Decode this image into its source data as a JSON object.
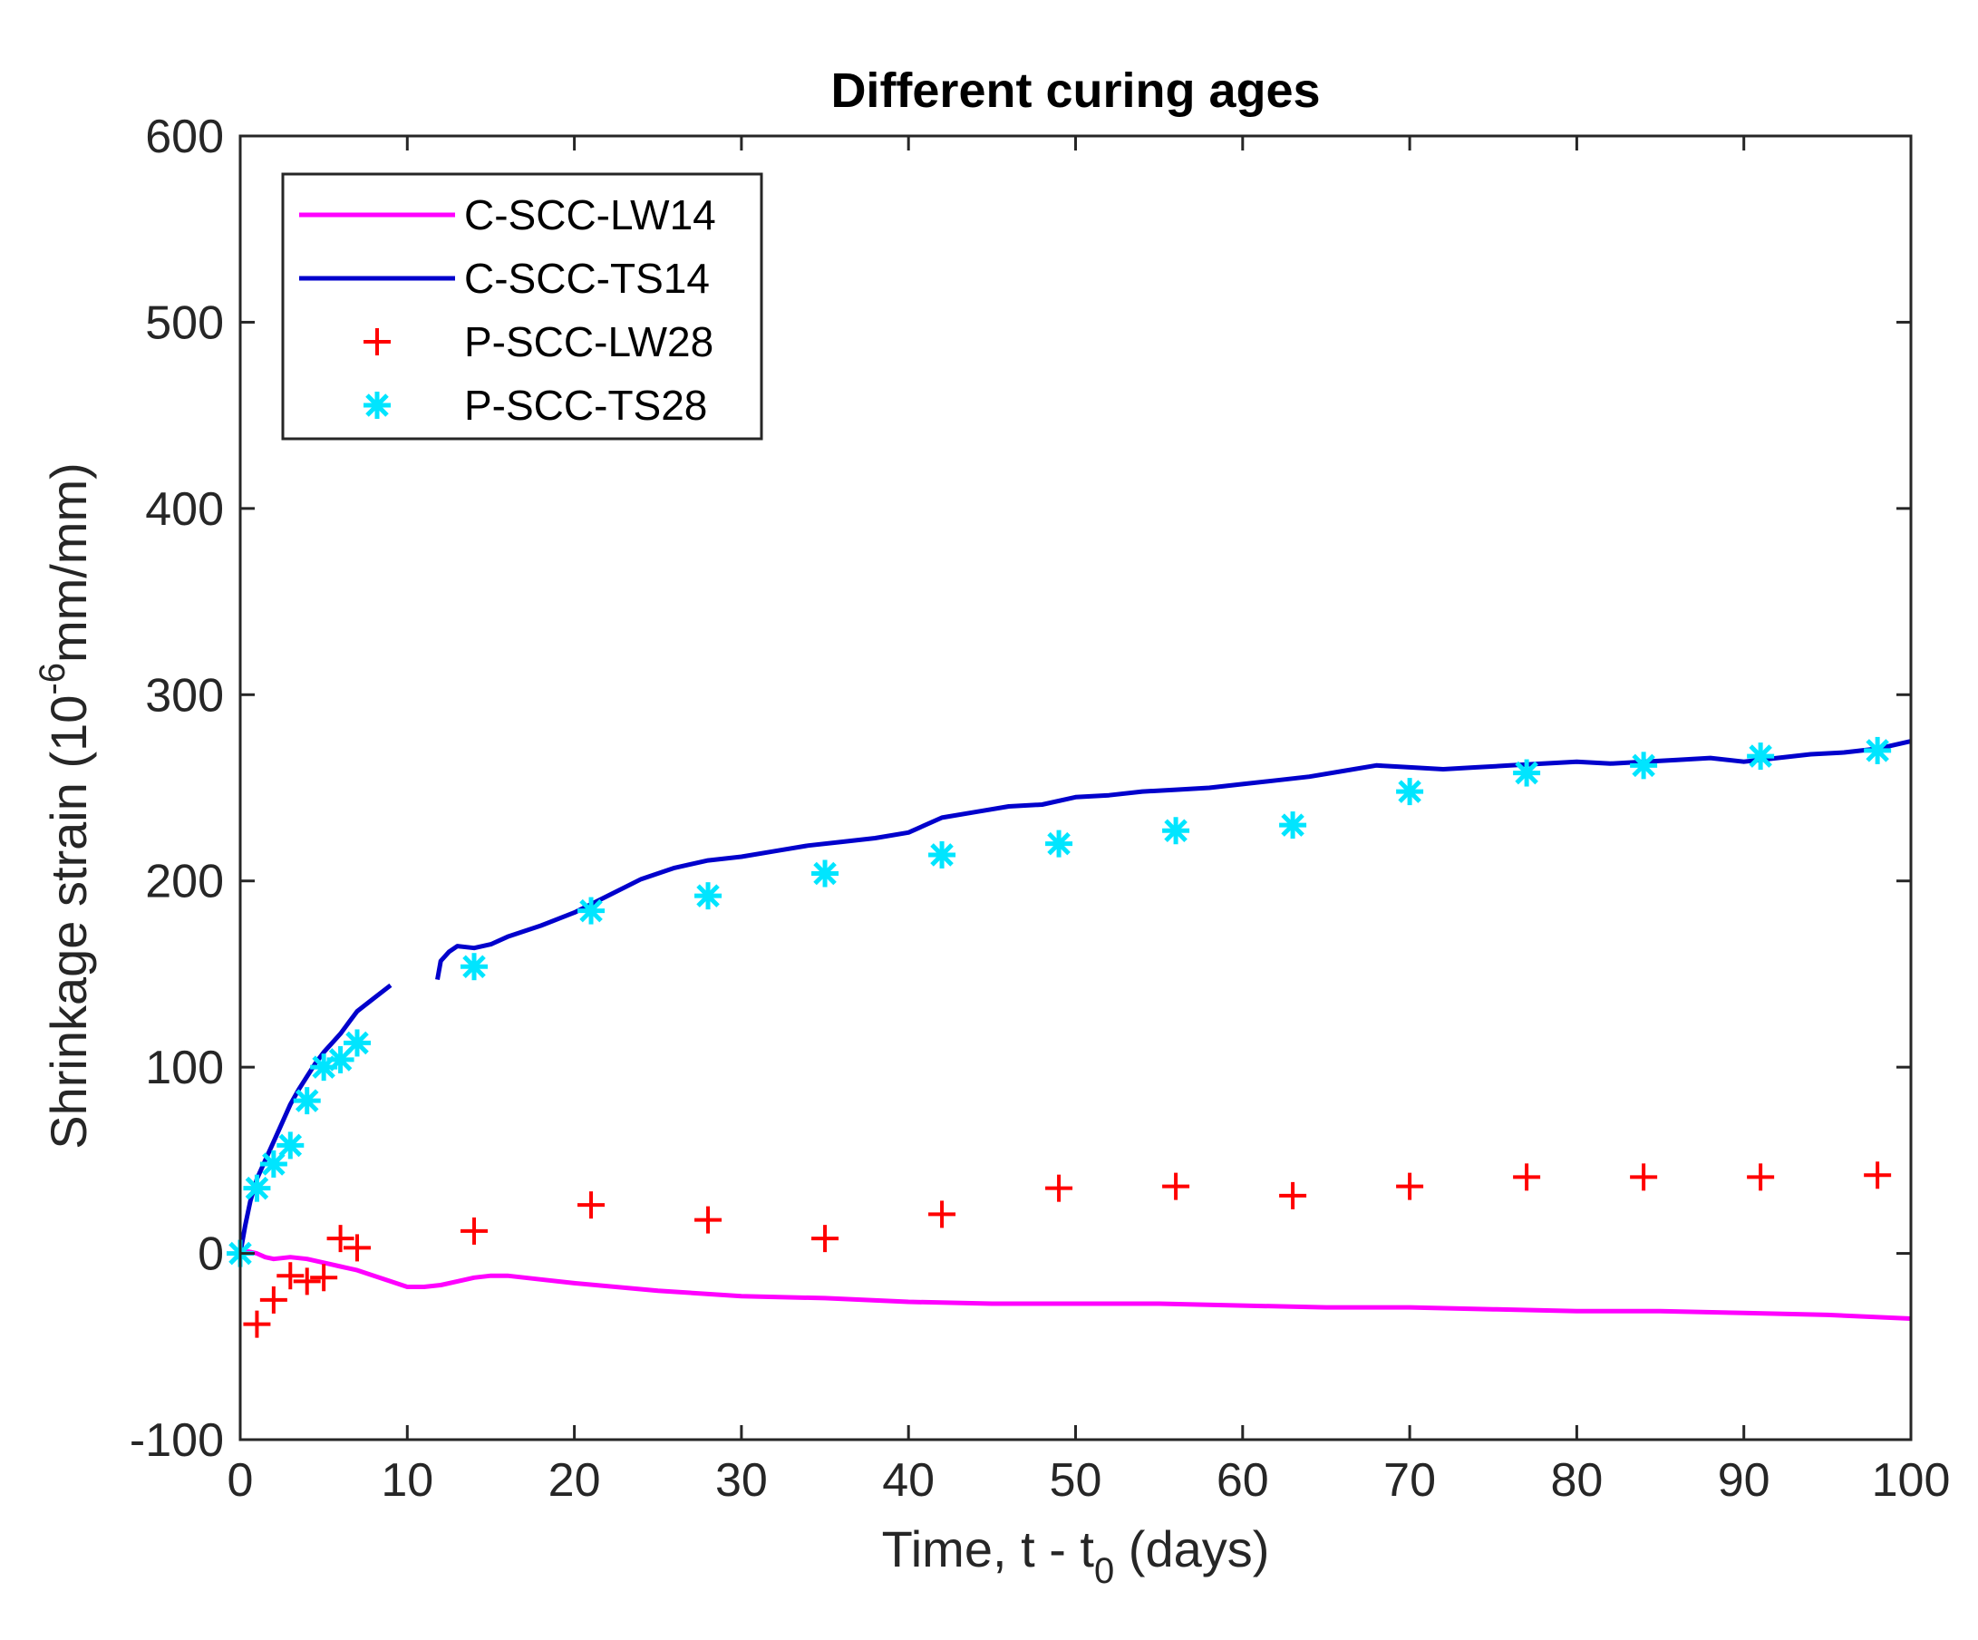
{
  "chart_data": {
    "type": "line",
    "title": "Different curing ages",
    "xlabel": {
      "prefix": "Time, t - t",
      "subscript": "0",
      "suffix": " (days)"
    },
    "ylabel": {
      "prefix": "Shrinkage strain (10",
      "superscript": "-6",
      "suffix": "mm/mm)"
    },
    "xlim": [
      0,
      100
    ],
    "ylim": [
      -100,
      600
    ],
    "xticks": [
      0,
      10,
      20,
      30,
      40,
      50,
      60,
      70,
      80,
      90,
      100
    ],
    "yticks": [
      -100,
      0,
      100,
      200,
      300,
      400,
      500,
      600
    ],
    "grid": false,
    "legend_position": "top-left",
    "series": [
      {
        "name": "C-SCC-LW14",
        "style": "line",
        "color": "#ff00ff",
        "x": [
          0,
          0.5,
          1,
          1.5,
          2,
          3,
          4,
          5,
          6,
          7,
          8,
          9,
          10,
          11,
          12,
          13,
          14,
          15,
          16,
          18,
          20,
          25,
          30,
          35,
          40,
          45,
          50,
          55,
          60,
          65,
          70,
          75,
          80,
          85,
          90,
          95,
          100
        ],
        "y": [
          0,
          1,
          0,
          -2,
          -3,
          -2,
          -3,
          -5,
          -7,
          -9,
          -12,
          -15,
          -18,
          -18,
          -17,
          -15,
          -13,
          -12,
          -12,
          -14,
          -16,
          -20,
          -23,
          -24,
          -26,
          -27,
          -27,
          -27,
          -28,
          -29,
          -29,
          -30,
          -31,
          -31,
          -32,
          -33,
          -35
        ]
      },
      {
        "name": "C-SCC-TS14",
        "style": "line",
        "color": "#0000cc",
        "segments": [
          {
            "x": [
              0,
              0.3,
              0.6,
              1,
              1.5,
              2,
              2.5,
              3,
              3.5,
              4,
              4.5,
              5,
              5.5,
              6,
              6.5,
              7,
              8,
              9
            ],
            "y": [
              0,
              15,
              28,
              40,
              50,
              60,
              70,
              80,
              88,
              95,
              102,
              108,
              113,
              118,
              124,
              130,
              137,
              144
            ]
          },
          {
            "x": [
              11.8,
              12,
              12.5,
              13,
              14,
              15,
              16,
              18,
              20,
              22,
              24,
              26,
              28,
              30,
              32,
              34,
              36,
              38,
              40,
              42,
              44,
              46,
              48,
              50,
              52,
              54,
              56,
              58,
              60,
              62,
              64,
              66,
              68,
              70,
              72,
              74,
              76,
              78,
              80,
              82,
              84,
              86,
              88,
              90,
              92,
              94,
              96,
              98,
              100
            ],
            "y": [
              147,
              157,
              162,
              165,
              164,
              166,
              170,
              176,
              183,
              192,
              201,
              207,
              211,
              213,
              216,
              219,
              221,
              223,
              226,
              234,
              237,
              240,
              241,
              245,
              246,
              248,
              249,
              250,
              252,
              254,
              256,
              259,
              262,
              261,
              260,
              261,
              262,
              263,
              264,
              263,
              264,
              265,
              266,
              264,
              266,
              268,
              269,
              271,
              275
            ]
          }
        ]
      },
      {
        "name": "P-SCC-LW28",
        "style": "plus",
        "color": "#ff0000",
        "x": [
          1,
          2,
          3,
          4,
          5,
          6,
          7,
          14,
          21,
          28,
          35,
          42,
          49,
          56,
          63,
          70,
          77,
          84,
          91,
          98
        ],
        "y": [
          -38,
          -25,
          -12,
          -15,
          -13,
          8,
          3,
          12,
          26,
          18,
          8,
          21,
          35,
          36,
          31,
          36,
          41,
          41,
          41,
          42
        ]
      },
      {
        "name": "P-SCC-TS28",
        "style": "asterisk",
        "color": "#00e5ff",
        "x": [
          0,
          1,
          2,
          3,
          4,
          5,
          6,
          7,
          14,
          21,
          28,
          35,
          42,
          49,
          56,
          63,
          70,
          77,
          84,
          91,
          98
        ],
        "y": [
          0,
          35,
          48,
          58,
          82,
          100,
          104,
          113,
          154,
          184,
          192,
          204,
          214,
          220,
          227,
          230,
          248,
          258,
          262,
          267,
          270
        ]
      }
    ]
  }
}
